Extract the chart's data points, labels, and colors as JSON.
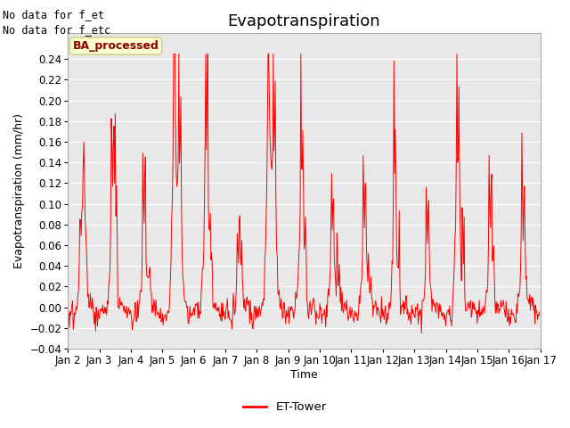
{
  "title": "Evapotranspiration",
  "ylabel": "Evapotranspiration (mm/hr)",
  "xlabel": "Time",
  "ylim": [
    -0.04,
    0.265
  ],
  "yticks": [
    -0.04,
    -0.02,
    0.0,
    0.02,
    0.04,
    0.06,
    0.08,
    0.1,
    0.12,
    0.14,
    0.16,
    0.18,
    0.2,
    0.22,
    0.24
  ],
  "xtick_labels": [
    "Jan 2",
    "Jan 3",
    "Jan 4",
    "Jan 5",
    "Jan 6",
    "Jan 7",
    "Jan 8",
    "Jan 9",
    "Jan 10",
    "Jan 11",
    "Jan 12",
    "Jan 13",
    "Jan 14",
    "Jan 15",
    "Jan 16",
    "Jan 17"
  ],
  "line_color": "#ff0000",
  "line_width": 0.7,
  "plot_bg_color": "#e8e8e8",
  "text_upper_left": "No data for f_et\nNo data for f_etc",
  "box_label": "BA_processed",
  "legend_label": "ET-Tower",
  "title_fontsize": 13,
  "label_fontsize": 9,
  "tick_fontsize": 8.5
}
